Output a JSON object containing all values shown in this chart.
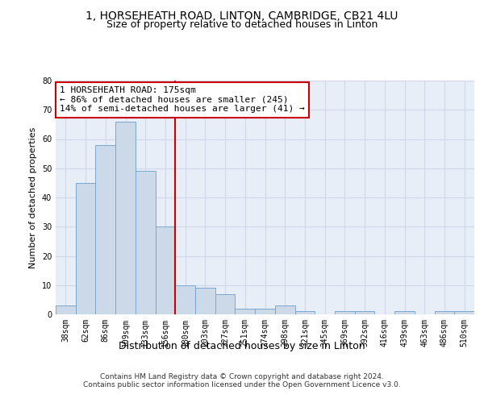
{
  "title": "1, HORSEHEATH ROAD, LINTON, CAMBRIDGE, CB21 4LU",
  "subtitle": "Size of property relative to detached houses in Linton",
  "xlabel": "Distribution of detached houses by size in Linton",
  "ylabel": "Number of detached properties",
  "categories": [
    "38sqm",
    "62sqm",
    "86sqm",
    "109sqm",
    "133sqm",
    "156sqm",
    "180sqm",
    "203sqm",
    "227sqm",
    "251sqm",
    "274sqm",
    "298sqm",
    "321sqm",
    "345sqm",
    "369sqm",
    "392sqm",
    "416sqm",
    "439sqm",
    "463sqm",
    "486sqm",
    "510sqm"
  ],
  "values": [
    3,
    45,
    58,
    66,
    49,
    30,
    10,
    9,
    7,
    2,
    2,
    3,
    1,
    0,
    1,
    1,
    0,
    1,
    0,
    1,
    1
  ],
  "bar_color": "#ccd9e8",
  "bar_edgecolor": "#7aa8cc",
  "vline_x_index": 6,
  "vline_color": "#cc0000",
  "annotation_text": "1 HORSEHEATH ROAD: 175sqm\n← 86% of detached houses are smaller (245)\n14% of semi-detached houses are larger (41) →",
  "annotation_box_edgecolor": "#cc0000",
  "ylim": [
    0,
    80
  ],
  "yticks": [
    0,
    10,
    20,
    30,
    40,
    50,
    60,
    70,
    80
  ],
  "grid_color": "#d0d8e8",
  "background_color": "#e8eef8",
  "footer": "Contains HM Land Registry data © Crown copyright and database right 2024.\nContains public sector information licensed under the Open Government Licence v3.0.",
  "title_fontsize": 10,
  "subtitle_fontsize": 9,
  "xlabel_fontsize": 9,
  "ylabel_fontsize": 8,
  "tick_fontsize": 7,
  "annotation_fontsize": 8,
  "footer_fontsize": 6.5
}
